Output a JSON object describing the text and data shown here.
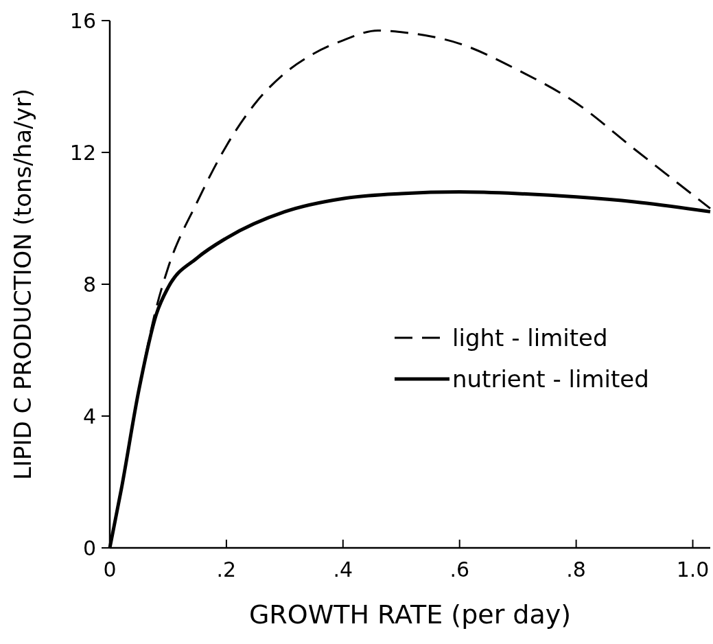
{
  "chart_data": {
    "type": "line",
    "xlabel": "GROWTH RATE (per day)",
    "ylabel": "LIPID C PRODUCTION (tons/ha/yr)",
    "xlim": [
      0,
      1.03
    ],
    "ylim": [
      0,
      16
    ],
    "xticks": [
      0,
      {
        "value": 0.2,
        "label": ".2"
      },
      {
        "value": 0.4,
        "label": ".4"
      },
      {
        "value": 0.6,
        "label": ".6"
      },
      {
        "value": 0.8,
        "label": ".8"
      },
      {
        "value": 1.0,
        "label": "1.0"
      }
    ],
    "yticks": [
      0,
      4,
      8,
      12,
      16
    ],
    "grid": false,
    "legend": "right",
    "marker": "none",
    "series": [
      {
        "name": "light - limited",
        "color": "#000000",
        "line_style": "dashed",
        "x": [
          0,
          0.02,
          0.05,
          0.08,
          0.1,
          0.15,
          0.2,
          0.25,
          0.3,
          0.35,
          0.4,
          0.46,
          0.5,
          0.6,
          0.7,
          0.8,
          0.9,
          1.03
        ],
        "values": [
          0,
          1.8,
          4.8,
          7.3,
          8.5,
          10.5,
          12.2,
          13.5,
          14.4,
          15.0,
          15.4,
          15.7,
          15.65,
          15.3,
          14.5,
          13.5,
          12.1,
          10.3
        ]
      },
      {
        "name": "nutrient - limited",
        "color": "#000000",
        "line_style": "solid",
        "x": [
          0,
          0.02,
          0.05,
          0.08,
          0.1,
          0.15,
          0.2,
          0.3,
          0.4,
          0.5,
          0.6,
          0.7,
          0.8,
          0.9,
          1.03
        ],
        "values": [
          0,
          1.8,
          4.8,
          7.1,
          7.9,
          8.8,
          9.4,
          10.2,
          10.6,
          10.75,
          10.8,
          10.75,
          10.65,
          10.5,
          10.2
        ]
      }
    ]
  }
}
